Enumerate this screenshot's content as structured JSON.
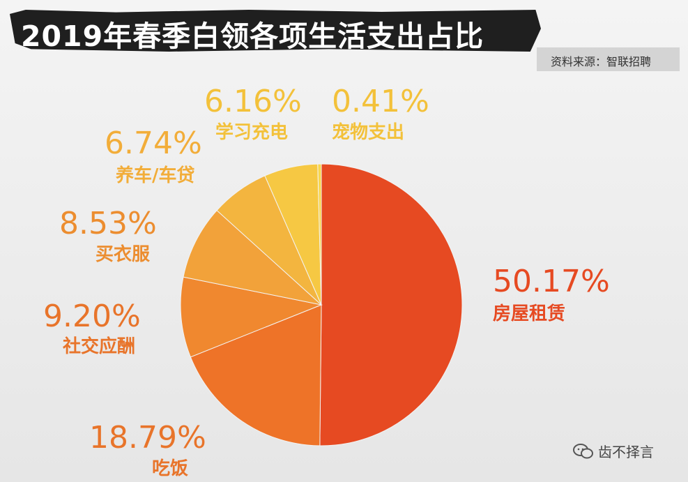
{
  "title": "2019年春季白领各项生活支出占比",
  "source": "资料来源：智联招聘",
  "watermark": "齿不择言",
  "colors": {
    "rent": "#e64a22",
    "food": "#ee7328",
    "social": "#f0882f",
    "clothes": "#f2a23a",
    "car": "#f3b53f",
    "study": "#f6c843",
    "pet": "#f8d74e",
    "label_dark": "#e8742a",
    "label_light": "#f3c13a"
  },
  "chart_data": {
    "type": "pie",
    "title": "2019年春季白领各项生活支出占比",
    "slices": [
      {
        "label": "房屋租赁",
        "value": 50.17,
        "value_text": "50.17%",
        "color": "#e64a22",
        "label_color": "#e64a22"
      },
      {
        "label": "吃饭",
        "value": 18.79,
        "value_text": "18.79%",
        "color": "#ee7328",
        "label_color": "#e8742a"
      },
      {
        "label": "社交应酬",
        "value": 9.2,
        "value_text": "9.20%",
        "color": "#f0882f",
        "label_color": "#e8742a"
      },
      {
        "label": "买衣服",
        "value": 8.53,
        "value_text": "8.53%",
        "color": "#f2a23a",
        "label_color": "#ec8d2f"
      },
      {
        "label": "养车/车贷",
        "value": 6.74,
        "value_text": "6.74%",
        "color": "#f3b53f",
        "label_color": "#f2ad39"
      },
      {
        "label": "学习充电",
        "value": 6.16,
        "value_text": "6.16%",
        "color": "#f6c843",
        "label_color": "#f3c13a"
      },
      {
        "label": "宠物支出",
        "value": 0.41,
        "value_text": "0.41%",
        "color": "#f8d74e",
        "label_color": "#f3c13a"
      }
    ]
  }
}
